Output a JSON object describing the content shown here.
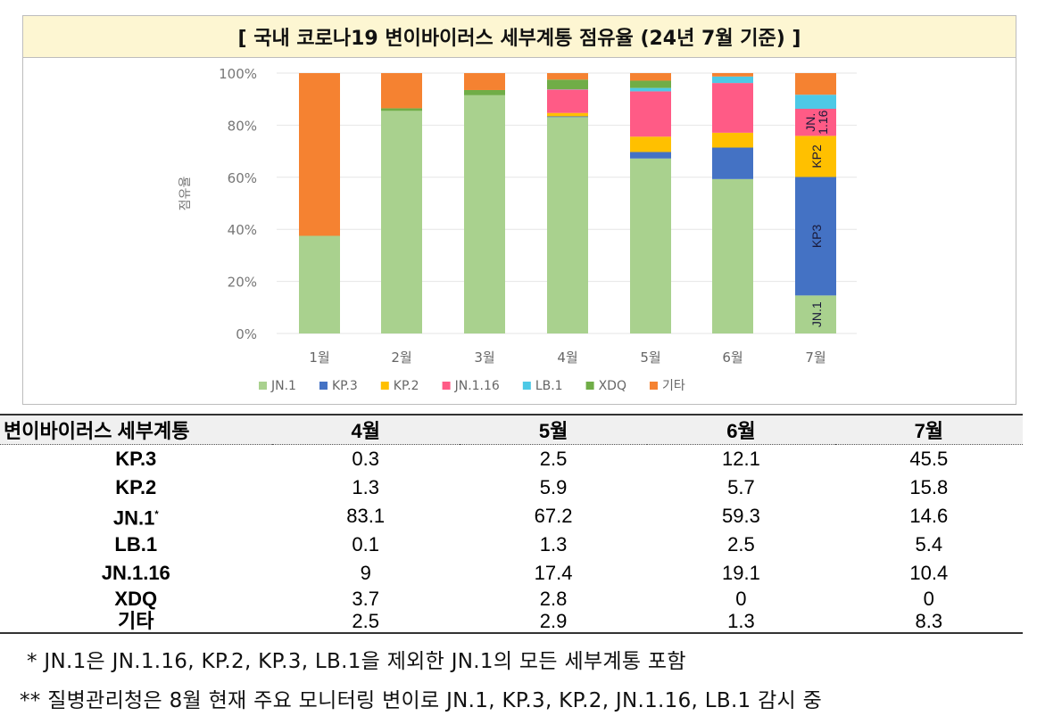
{
  "title": "[ 국내 코로나19 변이바이러스 세부계통 점유율 (24년 7월 기준) ]",
  "chart_data": {
    "type": "bar",
    "stacked": true,
    "categories": [
      "1월",
      "2월",
      "3월",
      "4월",
      "5월",
      "6월",
      "7월"
    ],
    "ylabel": "점유율",
    "ylim": [
      0,
      100
    ],
    "yticks": [
      "0%",
      "20%",
      "40%",
      "60%",
      "80%",
      "100%"
    ],
    "grid": true,
    "legend": "bottom",
    "series": [
      {
        "name": "JN.1",
        "color": "#a9d18e",
        "values": [
          37.5,
          85.5,
          91.5,
          83.1,
          67.2,
          59.3,
          14.6
        ]
      },
      {
        "name": "KP.3",
        "color": "#4472c4",
        "values": [
          0,
          0,
          0,
          0.3,
          2.5,
          12.1,
          45.5
        ]
      },
      {
        "name": "KP.2",
        "color": "#ffc000",
        "values": [
          0,
          0,
          0,
          1.3,
          5.9,
          5.7,
          15.8
        ]
      },
      {
        "name": "JN.1.16",
        "color": "#ff5b86",
        "values": [
          0,
          0,
          0,
          9,
          17.4,
          19.1,
          10.4
        ]
      },
      {
        "name": "LB.1",
        "color": "#4dc9e6",
        "values": [
          0,
          0,
          0,
          0.1,
          1.3,
          2.5,
          5.4
        ]
      },
      {
        "name": "XDQ",
        "color": "#70ad47",
        "values": [
          0,
          1,
          2,
          3.7,
          2.8,
          0,
          0
        ]
      },
      {
        "name": "기타",
        "color": "#f58231",
        "values": [
          62.5,
          13.5,
          6.5,
          2.5,
          2.9,
          1.3,
          8.3
        ]
      }
    ],
    "annotations": [
      {
        "category": "7월",
        "series": "JN.1",
        "text": "JN.1"
      },
      {
        "category": "7월",
        "series": "KP.3",
        "text": "KP3"
      },
      {
        "category": "7월",
        "series": "KP.2",
        "text": "KP2"
      },
      {
        "category": "7월",
        "series": "JN.1.16",
        "text": "JN. 1.16"
      }
    ]
  },
  "table": {
    "headers": [
      "변이바이러스 세부계통",
      "4월",
      "5월",
      "6월",
      "7월"
    ],
    "rows": [
      {
        "label": "KP.3",
        "values": [
          "0.3",
          "2.5",
          "12.1",
          "45.5"
        ]
      },
      {
        "label": "KP.2",
        "values": [
          "1.3",
          "5.9",
          "5.7",
          "15.8"
        ]
      },
      {
        "label": "JN.1",
        "mark": "*",
        "values": [
          "83.1",
          "67.2",
          "59.3",
          "14.6"
        ]
      },
      {
        "label": "LB.1",
        "values": [
          "0.1",
          "1.3",
          "2.5",
          "5.4"
        ]
      },
      {
        "label": "JN.1.16",
        "values": [
          "9",
          "17.4",
          "19.1",
          "10.4"
        ]
      },
      {
        "label": "XDQ",
        "values": [
          "3.7",
          "2.8",
          "0",
          "0"
        ]
      },
      {
        "label": "기타",
        "values": [
          "2.5",
          "2.9",
          "1.3",
          "8.3"
        ]
      }
    ]
  },
  "notes": [
    "* JN.1은 JN.1.16, KP.2, KP.3, LB.1을 제외한 JN.1의 모든 세부계통 포함",
    "** 질병관리청은 8월 현재 주요 모니터링 변이로 JN.1, KP.3, KP.2, JN.1.16, LB.1 감시 중"
  ]
}
